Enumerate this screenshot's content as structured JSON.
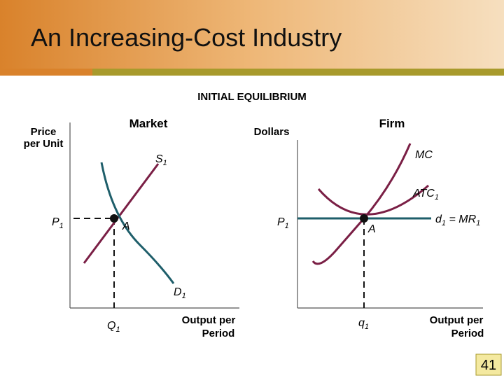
{
  "header": {
    "title": "An Increasing-Cost Industry"
  },
  "diagram": {
    "heading": "INITIAL EQUILIBRIUM",
    "market": {
      "title": "Market",
      "y_axis_label": [
        "Price",
        "per Unit"
      ],
      "x_axis_label": [
        "Output per",
        "Period"
      ],
      "supply_label": [
        "S",
        "1"
      ],
      "demand_label": [
        "D",
        "1"
      ],
      "price_label": [
        "P",
        "1"
      ],
      "point_label": "A",
      "quantity_label": [
        "Q",
        "1"
      ]
    },
    "firm": {
      "title": "Firm",
      "y_axis_label": "Dollars",
      "x_axis_label": [
        "Output per",
        "Period"
      ],
      "mc_label": "MC",
      "atc_label": [
        "ATC",
        "1"
      ],
      "demand_label": [
        "d",
        "1",
        " = MR",
        "1"
      ],
      "price_label": [
        "P",
        "1"
      ],
      "point_label": "A",
      "quantity_label": [
        "q",
        "1"
      ]
    }
  },
  "footer": {
    "page_number": "41"
  }
}
